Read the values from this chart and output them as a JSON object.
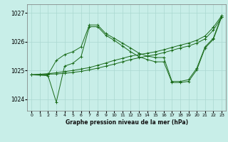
{
  "background_color": "#c8eee8",
  "grid_color": "#aad8d0",
  "line_color": "#1a6b1a",
  "marker_color": "#1a6b1a",
  "title": "Graphe pression niveau de la mer (hPa)",
  "xlim": [
    -0.5,
    23.5
  ],
  "ylim": [
    1023.6,
    1027.3
  ],
  "yticks": [
    1024,
    1025,
    1026,
    1027
  ],
  "xticks": [
    0,
    1,
    2,
    3,
    4,
    5,
    6,
    7,
    8,
    9,
    10,
    11,
    12,
    13,
    14,
    15,
    16,
    17,
    18,
    19,
    20,
    21,
    22,
    23
  ],
  "series": [
    {
      "x": [
        0,
        1,
        2,
        3,
        4,
        5,
        6,
        7,
        8,
        9,
        10,
        11,
        12,
        13,
        14,
        15,
        16,
        17,
        18,
        19,
        20,
        21,
        22,
        23
      ],
      "y": [
        1024.85,
        1024.87,
        1024.89,
        1024.92,
        1024.96,
        1025.0,
        1025.05,
        1025.1,
        1025.18,
        1025.26,
        1025.35,
        1025.42,
        1025.5,
        1025.55,
        1025.6,
        1025.65,
        1025.72,
        1025.8,
        1025.88,
        1025.95,
        1026.05,
        1026.2,
        1026.5,
        1026.9
      ]
    },
    {
      "x": [
        0,
        1,
        2,
        3,
        4,
        5,
        6,
        7,
        8,
        9,
        10,
        11,
        12,
        13,
        14,
        15,
        16,
        17,
        18,
        19,
        20,
        21,
        22,
        23
      ],
      "y": [
        1024.85,
        1024.86,
        1024.87,
        1024.88,
        1024.9,
        1024.93,
        1024.97,
        1025.02,
        1025.08,
        1025.15,
        1025.22,
        1025.3,
        1025.38,
        1025.44,
        1025.5,
        1025.55,
        1025.62,
        1025.7,
        1025.78,
        1025.85,
        1025.95,
        1026.1,
        1026.4,
        1026.85
      ]
    },
    {
      "x": [
        0,
        2,
        3,
        4,
        5,
        6,
        7,
        8,
        9,
        10,
        11,
        12,
        13,
        14,
        15,
        16,
        17,
        18,
        19,
        20,
        21,
        22,
        23
      ],
      "y": [
        1024.85,
        1024.85,
        1025.35,
        1025.55,
        1025.65,
        1025.82,
        1026.58,
        1026.58,
        1026.28,
        1026.12,
        1025.95,
        1025.78,
        1025.6,
        1025.5,
        1025.45,
        1025.45,
        1024.62,
        1024.62,
        1024.68,
        1025.08,
        1025.82,
        1026.12,
        1026.9
      ]
    },
    {
      "x": [
        0,
        2,
        3,
        4,
        5,
        6,
        7,
        8,
        9,
        10,
        11,
        12,
        13,
        14,
        15,
        16,
        17,
        18,
        19,
        20,
        21,
        22,
        23
      ],
      "y": [
        1024.85,
        1024.82,
        1023.9,
        1025.15,
        1025.25,
        1025.48,
        1026.52,
        1026.52,
        1026.22,
        1026.05,
        1025.85,
        1025.65,
        1025.48,
        1025.38,
        1025.3,
        1025.3,
        1024.58,
        1024.58,
        1024.62,
        1025.02,
        1025.78,
        1026.08,
        1026.85
      ]
    }
  ]
}
